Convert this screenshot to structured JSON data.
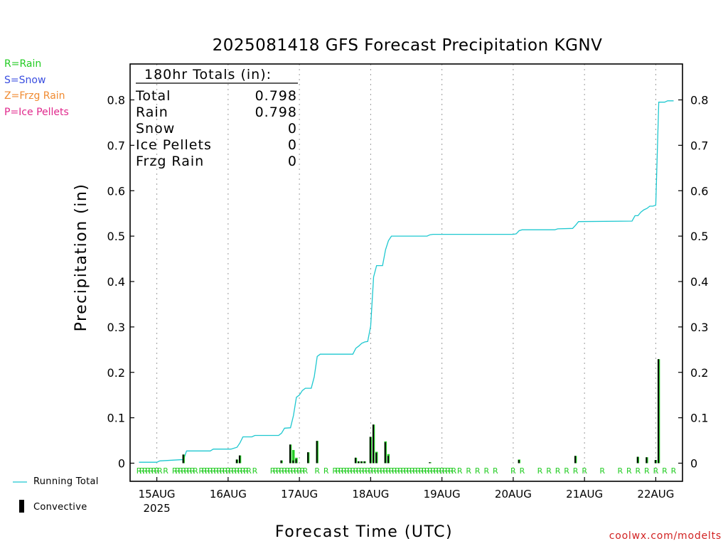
{
  "title": "2025081418 GFS Forecast Precipitation KGNV",
  "ylabel": "Precipitation (in)",
  "xlabel": "Forecast Time (UTC)",
  "watermark": "coolwx.com/modelts",
  "type_legend": [
    {
      "label": "R=Rain",
      "color": "#22cc22"
    },
    {
      "label": "S=Snow",
      "color": "#3a4ee0"
    },
    {
      "label": "Z=Frzg Rain",
      "color": "#f08a30"
    },
    {
      "label": "P=Ice Pellets",
      "color": "#e0288c"
    }
  ],
  "totals": {
    "header": "180hr Totals (in):",
    "rows": [
      {
        "label": "Total",
        "value": "0.798"
      },
      {
        "label": "Rain",
        "value": "0.798"
      },
      {
        "label": "Snow",
        "value": "0"
      },
      {
        "label": "Ice Pellets",
        "value": "0"
      },
      {
        "label": "Frzg Rain",
        "value": "0"
      }
    ]
  },
  "series_legend": {
    "running_total": "Running Total",
    "convective": "Convective"
  },
  "colors": {
    "running_total": "#1fc8d0",
    "bar_total": "#22cc22",
    "bar_convective": "#000000",
    "precip_type": "#22cc22",
    "watermark": "#d22222"
  },
  "chart_data": {
    "type": "bar",
    "x_unit": "forecast hour",
    "xlim": [
      -3,
      183
    ],
    "ylim": [
      0,
      0.88
    ],
    "yticks": [
      0,
      0.1,
      0.2,
      0.3,
      0.4,
      0.5,
      0.6,
      0.7,
      0.8
    ],
    "ytick_labels": [
      "0",
      "0.1",
      "0.2",
      "0.3",
      "0.4",
      "0.5",
      "0.6",
      "0.7",
      "0.8"
    ],
    "xticks": [
      {
        "hour": 6,
        "label": "15AUG",
        "sublabel": "2025"
      },
      {
        "hour": 30,
        "label": "16AUG"
      },
      {
        "hour": 54,
        "label": "17AUG"
      },
      {
        "hour": 78,
        "label": "18AUG"
      },
      {
        "hour": 102,
        "label": "19AUG"
      },
      {
        "hour": 126,
        "label": "20AUG"
      },
      {
        "hour": 150,
        "label": "21AUG"
      },
      {
        "hour": 174,
        "label": "22AUG"
      }
    ],
    "grid": "vertical dotted at day boundaries",
    "series": [
      {
        "name": "Running Total",
        "kind": "line",
        "points": [
          [
            0,
            0.002
          ],
          [
            6,
            0.002
          ],
          [
            7,
            0.005
          ],
          [
            15,
            0.008
          ],
          [
            16,
            0.027
          ],
          [
            24,
            0.027
          ],
          [
            25,
            0.031
          ],
          [
            31,
            0.031
          ],
          [
            33,
            0.035
          ],
          [
            34,
            0.045
          ],
          [
            35,
            0.058
          ],
          [
            38,
            0.058
          ],
          [
            39,
            0.061
          ],
          [
            47,
            0.061
          ],
          [
            48,
            0.066
          ],
          [
            49,
            0.077
          ],
          [
            51,
            0.078
          ],
          [
            52,
            0.105
          ],
          [
            53,
            0.145
          ],
          [
            54,
            0.15
          ],
          [
            55,
            0.16
          ],
          [
            56,
            0.165
          ],
          [
            58,
            0.165
          ],
          [
            59,
            0.19
          ],
          [
            60,
            0.235
          ],
          [
            61,
            0.24
          ],
          [
            72,
            0.24
          ],
          [
            73,
            0.253
          ],
          [
            74,
            0.258
          ],
          [
            75,
            0.264
          ],
          [
            76,
            0.267
          ],
          [
            77,
            0.268
          ],
          [
            78,
            0.302
          ],
          [
            79,
            0.41
          ],
          [
            80,
            0.435
          ],
          [
            82,
            0.435
          ],
          [
            83,
            0.47
          ],
          [
            84,
            0.49
          ],
          [
            85,
            0.5
          ],
          [
            97,
            0.5
          ],
          [
            98,
            0.503
          ],
          [
            99,
            0.504
          ],
          [
            126,
            0.504
          ],
          [
            127,
            0.505
          ],
          [
            128,
            0.512
          ],
          [
            129,
            0.514
          ],
          [
            140,
            0.514
          ],
          [
            141,
            0.516
          ],
          [
            146,
            0.517
          ],
          [
            147,
            0.524
          ],
          [
            148,
            0.532
          ],
          [
            166,
            0.533
          ],
          [
            167,
            0.545
          ],
          [
            168,
            0.545
          ],
          [
            169,
            0.553
          ],
          [
            170,
            0.558
          ],
          [
            171,
            0.561
          ],
          [
            172,
            0.566
          ],
          [
            173,
            0.566
          ],
          [
            174,
            0.568
          ],
          [
            175,
            0.795
          ],
          [
            177,
            0.795
          ],
          [
            178,
            0.798
          ],
          [
            180,
            0.798
          ]
        ]
      },
      {
        "name": "Total",
        "kind": "bar",
        "points": [
          [
            15,
            0.019
          ],
          [
            33,
            0.008
          ],
          [
            34,
            0.017
          ],
          [
            48,
            0.006
          ],
          [
            51,
            0.041
          ],
          [
            52,
            0.029
          ],
          [
            53,
            0.012
          ],
          [
            57,
            0.024
          ],
          [
            60,
            0.049
          ],
          [
            73,
            0.012
          ],
          [
            74,
            0.004
          ],
          [
            75,
            0.004
          ],
          [
            76,
            0.004
          ],
          [
            78,
            0.058
          ],
          [
            79,
            0.085
          ],
          [
            80,
            0.025
          ],
          [
            83,
            0.048
          ],
          [
            84,
            0.02
          ],
          [
            98,
            0.002
          ],
          [
            128,
            0.008
          ],
          [
            147,
            0.016
          ],
          [
            168,
            0.014
          ],
          [
            171,
            0.013
          ],
          [
            174,
            0.007
          ],
          [
            175,
            0.229
          ]
        ]
      },
      {
        "name": "Convective",
        "kind": "bar",
        "points": [
          [
            15,
            0.019
          ],
          [
            33,
            0.008
          ],
          [
            34,
            0.017
          ],
          [
            48,
            0.006
          ],
          [
            51,
            0.041
          ],
          [
            52,
            0.006
          ],
          [
            53,
            0.009
          ],
          [
            57,
            0.024
          ],
          [
            60,
            0.049
          ],
          [
            73,
            0.012
          ],
          [
            74,
            0.004
          ],
          [
            75,
            0.004
          ],
          [
            76,
            0.004
          ],
          [
            78,
            0.058
          ],
          [
            79,
            0.085
          ],
          [
            80,
            0.023
          ],
          [
            83,
            0.046
          ],
          [
            84,
            0.016
          ],
          [
            98,
            0.002
          ],
          [
            128,
            0.007
          ],
          [
            147,
            0.016
          ],
          [
            168,
            0.014
          ],
          [
            171,
            0.013
          ],
          [
            174,
            0.007
          ],
          [
            175,
            0.229
          ]
        ]
      }
    ],
    "precip_type_hours": [
      0,
      1,
      2,
      3,
      4,
      5,
      6,
      7,
      9,
      12,
      13,
      14,
      15,
      16,
      17,
      18,
      19,
      21,
      22,
      23,
      24,
      25,
      26,
      27,
      28,
      29,
      30,
      31,
      32,
      33,
      34,
      35,
      36,
      37,
      39,
      45,
      46,
      47,
      48,
      49,
      50,
      51,
      52,
      53,
      54,
      55,
      56,
      60,
      63,
      66,
      67,
      68,
      69,
      70,
      71,
      72,
      73,
      74,
      75,
      76,
      77,
      78,
      79,
      80,
      81,
      82,
      83,
      84,
      85,
      86,
      87,
      88,
      89,
      90,
      91,
      92,
      93,
      94,
      95,
      96,
      97,
      98,
      99,
      100,
      101,
      102,
      103,
      104,
      105,
      106,
      108,
      111,
      114,
      117,
      120,
      126,
      129,
      135,
      138,
      141,
      144,
      147,
      150,
      156,
      162,
      165,
      168,
      171,
      174,
      177,
      180
    ],
    "precip_type_label": "R"
  }
}
